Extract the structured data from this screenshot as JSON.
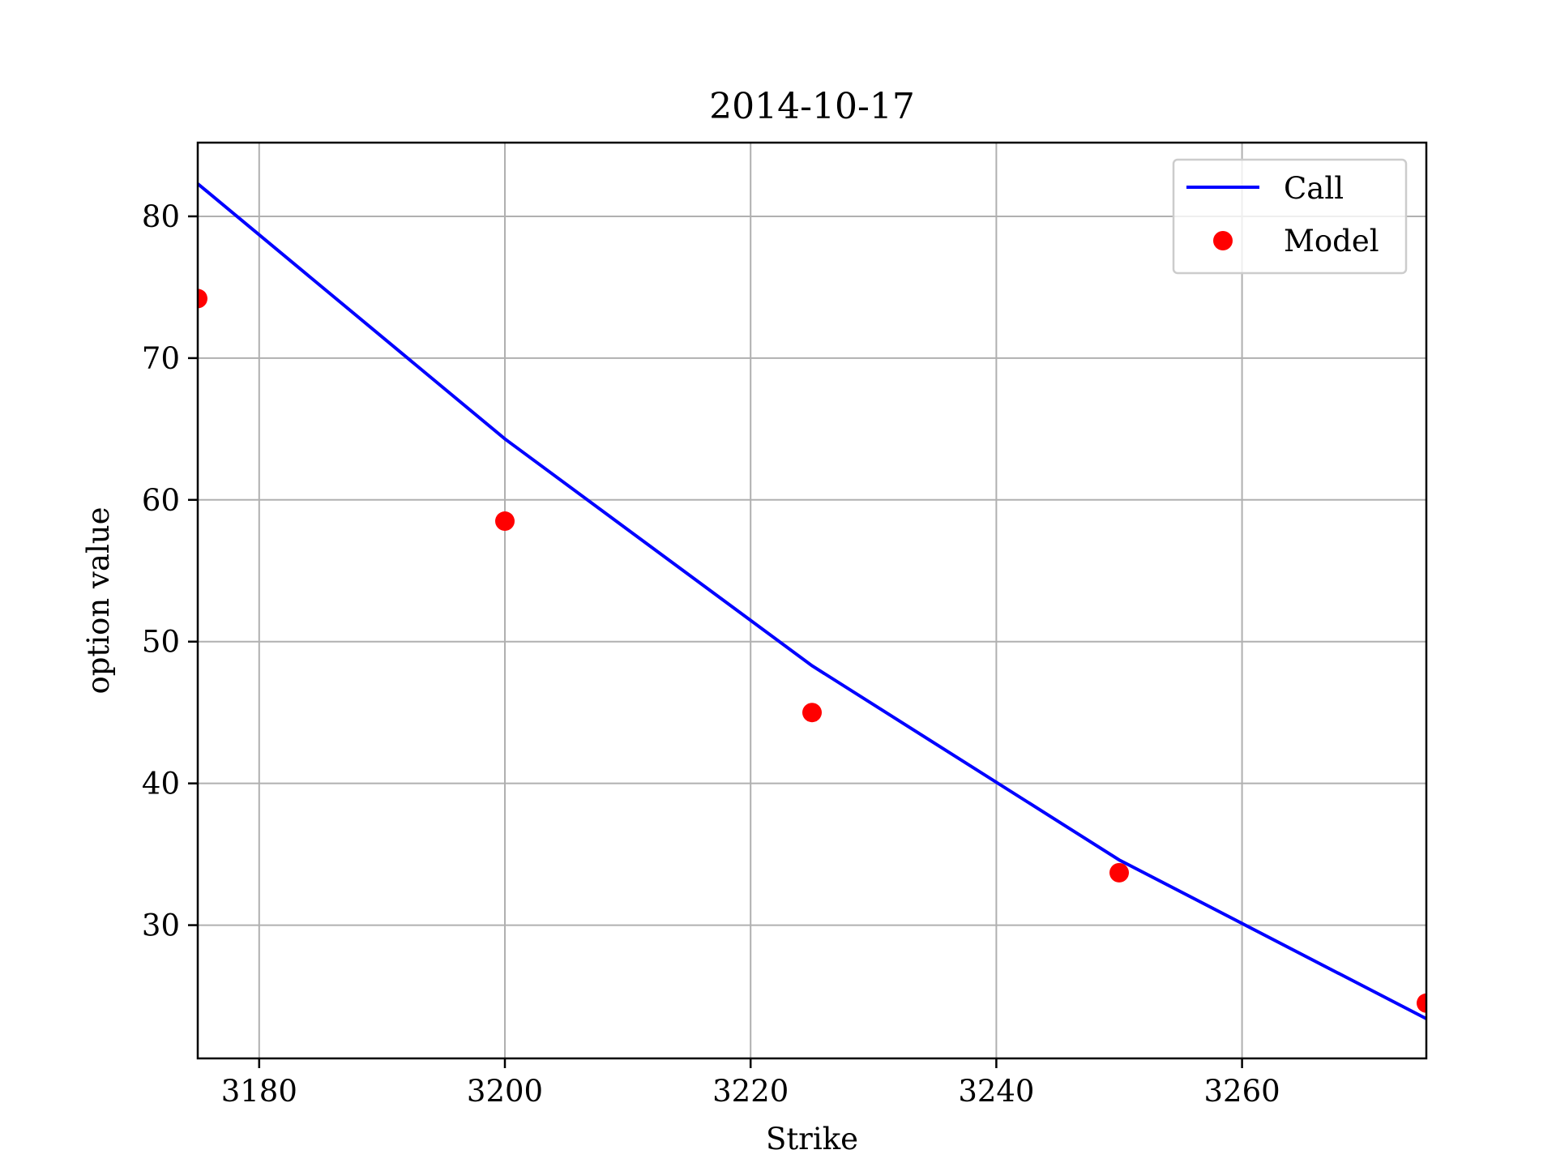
{
  "chart_data": {
    "type": "line",
    "title": "2014-10-17",
    "xlabel": "Strike",
    "ylabel": "option value",
    "xlim": [
      3175,
      3275
    ],
    "ylim": [
      20.6,
      85.2
    ],
    "xticks": [
      3180,
      3200,
      3220,
      3240,
      3260
    ],
    "yticks": [
      30,
      40,
      50,
      60,
      70,
      80
    ],
    "grid": true,
    "legend_position": "upper right",
    "series": [
      {
        "name": "Call",
        "kind": "line",
        "color": "#0000ff",
        "x": [
          3175,
          3200,
          3225,
          3250,
          3275
        ],
        "y": [
          82.3,
          64.3,
          48.3,
          34.6,
          23.4
        ]
      },
      {
        "name": "Model",
        "kind": "scatter",
        "color": "#ff0000",
        "x": [
          3175,
          3200,
          3225,
          3250,
          3275
        ],
        "y": [
          74.2,
          58.5,
          45.0,
          33.7,
          24.5
        ]
      }
    ]
  },
  "colors": {
    "grid": "#b0b0b0",
    "axes": "#000000",
    "legend_border": "#cccccc"
  }
}
